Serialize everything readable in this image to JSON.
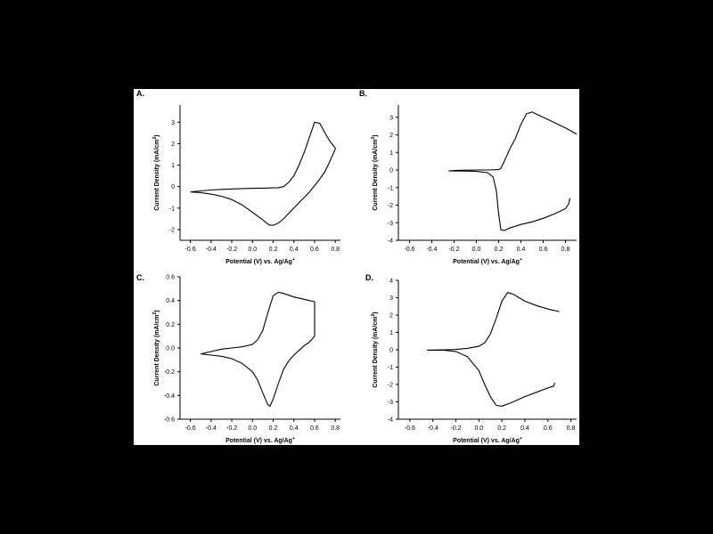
{
  "chart_data": [
    {
      "panel": "A.",
      "type": "line",
      "xlabel": "Potential (V) vs. Ag/Ag",
      "xlabel_sup": "+",
      "ylabel": "Current Density (mA/cm",
      "ylabel_sup": "2",
      "ylabel_tail": ")",
      "xlim": [
        -0.7,
        0.85
      ],
      "ylim": [
        -2.5,
        3.8
      ],
      "xticks": [
        -0.6,
        -0.4,
        -0.2,
        0.0,
        0.2,
        0.4,
        0.6,
        0.8
      ],
      "xtick_labels": [
        "-0.6",
        "-0.4",
        "-0.2",
        "0.0",
        "0.2",
        "0.4",
        "0.6",
        "0.8"
      ],
      "yticks": [
        -2,
        -1,
        0,
        1,
        2,
        3
      ],
      "ytick_labels": [
        "-2",
        "-1",
        "0",
        "1",
        "2",
        "3"
      ],
      "x": [
        -0.6,
        -0.5,
        -0.4,
        -0.3,
        -0.2,
        -0.1,
        0.0,
        0.1,
        0.2,
        0.25,
        0.3,
        0.35,
        0.4,
        0.45,
        0.5,
        0.55,
        0.6,
        0.65,
        0.7,
        0.75,
        0.8,
        0.8,
        0.75,
        0.7,
        0.65,
        0.6,
        0.55,
        0.5,
        0.45,
        0.4,
        0.35,
        0.3,
        0.25,
        0.2,
        0.17,
        0.15,
        0.1,
        0.0,
        -0.1,
        -0.2,
        -0.3,
        -0.4,
        -0.5,
        -0.6
      ],
      "y": [
        -0.25,
        -0.2,
        -0.16,
        -0.13,
        -0.11,
        -0.09,
        -0.08,
        -0.07,
        -0.06,
        -0.05,
        0.0,
        0.2,
        0.5,
        1.0,
        1.6,
        2.3,
        3.0,
        2.95,
        2.5,
        2.1,
        1.8,
        1.75,
        1.2,
        0.7,
        0.35,
        0.05,
        -0.25,
        -0.5,
        -0.75,
        -1.0,
        -1.25,
        -1.5,
        -1.7,
        -1.8,
        -1.8,
        -1.75,
        -1.55,
        -1.2,
        -0.85,
        -0.6,
        -0.45,
        -0.35,
        -0.28,
        -0.25
      ]
    },
    {
      "panel": "B.",
      "type": "line",
      "xlabel": "Potential (V) vs. Ag/Ag",
      "xlabel_sup": "+",
      "ylabel": "Current Density (mA/cm",
      "ylabel_sup": "2",
      "ylabel_tail": ")",
      "xlim": [
        -0.7,
        0.9
      ],
      "ylim": [
        -4,
        3.7
      ],
      "xticks": [
        -0.6,
        -0.4,
        -0.2,
        0.0,
        0.2,
        0.4,
        0.6,
        0.8
      ],
      "xtick_labels": [
        "-0.6",
        "-0.4",
        "-0.2",
        "0.0",
        "0.2",
        "0.4",
        "0.6",
        "0.8"
      ],
      "yticks": [
        -4,
        -3,
        -2,
        -1,
        0,
        1,
        2,
        3
      ],
      "ytick_labels": [
        "-4",
        "-3",
        "-2",
        "-1",
        "0",
        "1",
        "2",
        "3"
      ],
      "x": [
        -0.25,
        -0.2,
        -0.1,
        0.0,
        0.1,
        0.2,
        0.22,
        0.25,
        0.3,
        0.35,
        0.4,
        0.45,
        0.5,
        0.6,
        0.7,
        0.8,
        0.9
      ],
      "y": [
        -0.05,
        -0.03,
        -0.01,
        0.0,
        0.0,
        0.02,
        0.1,
        0.5,
        1.2,
        1.8,
        2.6,
        3.2,
        3.3,
        3.0,
        2.7,
        2.4,
        2.05
      ],
      "x2": [
        -0.25,
        -0.1,
        0.0,
        0.1,
        0.15,
        0.18,
        0.2,
        0.22,
        0.25,
        0.3,
        0.4,
        0.5,
        0.6,
        0.7,
        0.8,
        0.83,
        0.84
      ],
      "y2": [
        -0.05,
        -0.06,
        -0.08,
        -0.15,
        -0.4,
        -1.2,
        -2.5,
        -3.4,
        -3.45,
        -3.3,
        -3.1,
        -2.95,
        -2.75,
        -2.5,
        -2.2,
        -1.9,
        -1.6
      ]
    },
    {
      "panel": "C.",
      "type": "line",
      "xlabel": "Potential (V) vs. Ag/Ag",
      "xlabel_sup": "+",
      "ylabel": "Current Density (mA/cm",
      "ylabel_sup": "2",
      "ylabel_tail": ")",
      "xlim": [
        -0.7,
        0.85
      ],
      "ylim": [
        -0.6,
        0.6
      ],
      "xticks": [
        -0.6,
        -0.4,
        -0.2,
        0.0,
        0.2,
        0.4,
        0.6,
        0.8
      ],
      "xtick_labels": [
        "-0.6",
        "-0.4",
        "-0.2",
        "0.0",
        "0.2",
        "0.4",
        "0.6",
        "0.8"
      ],
      "yticks": [
        -0.6,
        -0.4,
        -0.2,
        0.0,
        0.2,
        0.4,
        0.6
      ],
      "ytick_labels": [
        "-0.6",
        "-0.4",
        "-0.2",
        "0.0",
        "0.2",
        "0.4",
        "0.6"
      ],
      "x": [
        -0.5,
        -0.4,
        -0.3,
        -0.2,
        -0.1,
        0.0,
        0.05,
        0.1,
        0.15,
        0.2,
        0.25,
        0.3,
        0.4,
        0.5,
        0.6,
        0.6,
        0.6,
        0.55,
        0.5,
        0.45,
        0.4,
        0.35,
        0.3,
        0.25,
        0.2,
        0.17,
        0.15,
        0.1,
        0.05,
        0.0,
        -0.1,
        -0.2,
        -0.3,
        -0.4,
        -0.5
      ],
      "y": [
        -0.05,
        -0.03,
        -0.01,
        0.0,
        0.01,
        0.03,
        0.07,
        0.15,
        0.3,
        0.44,
        0.47,
        0.46,
        0.43,
        0.41,
        0.39,
        0.28,
        0.1,
        0.05,
        0.02,
        -0.02,
        -0.06,
        -0.11,
        -0.18,
        -0.3,
        -0.43,
        -0.49,
        -0.48,
        -0.38,
        -0.27,
        -0.2,
        -0.13,
        -0.09,
        -0.07,
        -0.06,
        -0.05
      ]
    },
    {
      "panel": "D.",
      "type": "line",
      "xlabel": "Potential (V) vs. Ag/Ag",
      "xlabel_sup": "+",
      "ylabel": "Current Density (mA/cm",
      "ylabel_sup": "2",
      "ylabel_tail": ")",
      "xlim": [
        -0.7,
        0.85
      ],
      "ylim": [
        -4,
        4
      ],
      "xticks": [
        -0.6,
        -0.4,
        -0.2,
        0.0,
        0.2,
        0.4,
        0.6,
        0.8
      ],
      "xtick_labels": [
        "-0.6",
        "-0.4",
        "-0.2",
        "0.0",
        "0.2",
        "0.4",
        "0.6",
        "0.8"
      ],
      "yticks": [
        -4,
        -3,
        -2,
        -1,
        0,
        1,
        2,
        3,
        4
      ],
      "ytick_labels": [
        "-4",
        "-3",
        "-2",
        "-1",
        "0",
        "1",
        "2",
        "3",
        "4"
      ],
      "x": [
        -0.45,
        -0.3,
        -0.2,
        -0.1,
        0.0,
        0.05,
        0.1,
        0.15,
        0.2,
        0.25,
        0.3,
        0.4,
        0.5,
        0.6,
        0.7
      ],
      "y": [
        -0.02,
        0.0,
        0.02,
        0.08,
        0.2,
        0.4,
        0.9,
        1.8,
        2.8,
        3.3,
        3.2,
        2.8,
        2.55,
        2.35,
        2.2
      ],
      "x2": [
        -0.45,
        -0.3,
        -0.2,
        -0.1,
        0.0,
        0.05,
        0.1,
        0.15,
        0.2,
        0.3,
        0.4,
        0.5,
        0.6,
        0.65,
        0.66
      ],
      "y2": [
        -0.02,
        -0.03,
        -0.1,
        -0.4,
        -1.2,
        -2.0,
        -2.7,
        -3.2,
        -3.25,
        -3.0,
        -2.7,
        -2.45,
        -2.2,
        -2.1,
        -1.9
      ]
    }
  ]
}
